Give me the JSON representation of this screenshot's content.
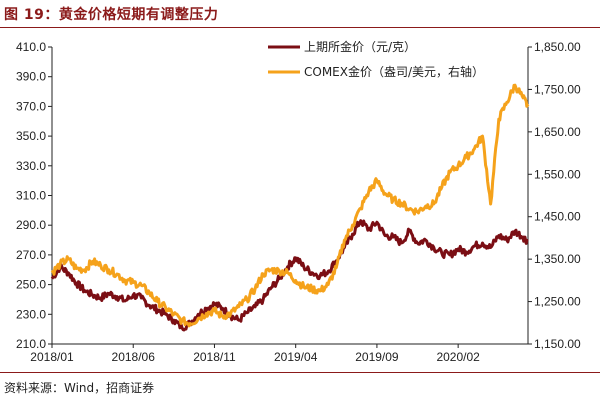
{
  "figure": {
    "title": "图 19：黄金价格短期有调整压力",
    "source": "资料来源：Wind，招商证券"
  },
  "colors": {
    "shfe": "#7B0E14",
    "comex": "#F5A21B",
    "axis": "#222222",
    "title": "#8B1A1A"
  },
  "chart_data": {
    "type": "line",
    "title": "",
    "x_ticks": [
      "2018/01",
      "2018/06",
      "2018/11",
      "2019/04",
      "2019/09",
      "2020/02"
    ],
    "x_tick_months": [
      0,
      5,
      10,
      15,
      20,
      25
    ],
    "xlim_months": [
      0,
      29.3
    ],
    "y_left": {
      "label": "",
      "lim": [
        210,
        410
      ],
      "ticks": [
        "210.0",
        "230.0",
        "250.0",
        "270.0",
        "290.0",
        "310.0",
        "330.0",
        "350.0",
        "370.0",
        "390.0",
        "410.0"
      ]
    },
    "y_right": {
      "label": "",
      "lim": [
        1150,
        1850
      ],
      "ticks": [
        "1,150.00",
        "1,250.00",
        "1,350.00",
        "1,450.00",
        "1,550.00",
        "1,650.00",
        "1,750.00",
        "1,850.00"
      ]
    },
    "legend_position": "top-right",
    "series": [
      {
        "name": "上期所金价（元/克）",
        "axis": "left",
        "x_months": [
          0,
          0.5,
          1,
          1.5,
          2,
          2.5,
          3,
          3.5,
          4,
          4.5,
          5,
          5.5,
          6,
          6.5,
          7,
          7.5,
          8,
          8.5,
          9,
          9.5,
          10,
          10.5,
          11,
          11.5,
          12,
          12.5,
          13,
          13.5,
          14,
          14.5,
          15,
          15.5,
          16,
          16.5,
          17,
          17.5,
          18,
          18.5,
          19,
          19.5,
          20,
          20.5,
          21,
          21.5,
          22,
          22.5,
          23,
          23.5,
          24,
          24.5,
          25,
          25.5,
          26,
          26.5,
          27,
          27.5,
          28,
          28.5,
          29,
          29.3
        ],
        "values": [
          254,
          262,
          258,
          251,
          246,
          243,
          241,
          244,
          242,
          239,
          243,
          241,
          236,
          233,
          230,
          226,
          221,
          224,
          230,
          234,
          237,
          234,
          229,
          226,
          231,
          235,
          240,
          248,
          254,
          262,
          268,
          262,
          258,
          256,
          259,
          266,
          275,
          284,
          293,
          287,
          292,
          283,
          282,
          278,
          286,
          278,
          280,
          275,
          271,
          270,
          274,
          272,
          276,
          278,
          275,
          283,
          280,
          286,
          282,
          279
        ]
      },
      {
        "name": "COMEX金价（盎司/美元，右轴）",
        "axis": "right",
        "x_months": [
          0,
          0.5,
          1,
          1.5,
          2,
          2.5,
          3,
          3.5,
          4,
          4.5,
          5,
          5.5,
          6,
          6.5,
          7,
          7.5,
          8,
          8.5,
          9,
          9.5,
          10,
          10.5,
          11,
          11.5,
          12,
          12.5,
          13,
          13.5,
          14,
          14.5,
          15,
          15.5,
          16,
          16.5,
          17,
          17.5,
          18,
          18.5,
          19,
          19.5,
          20,
          20.5,
          21,
          21.5,
          22,
          22.5,
          23,
          23.5,
          24,
          24.5,
          25,
          25.5,
          26,
          26.5,
          27,
          27.5,
          28,
          28.5,
          29,
          29.3
        ],
        "values": [
          1318,
          1338,
          1350,
          1328,
          1325,
          1345,
          1335,
          1325,
          1315,
          1300,
          1295,
          1288,
          1270,
          1250,
          1235,
          1220,
          1205,
          1198,
          1210,
          1222,
          1228,
          1215,
          1222,
          1238,
          1255,
          1280,
          1315,
          1325,
          1322,
          1318,
          1300,
          1285,
          1280,
          1275,
          1290,
          1330,
          1395,
          1430,
          1470,
          1510,
          1535,
          1505,
          1490,
          1482,
          1468,
          1462,
          1475,
          1480,
          1520,
          1555,
          1570,
          1590,
          1610,
          1640,
          1480,
          1680,
          1720,
          1760,
          1730,
          1710
        ]
      }
    ]
  }
}
